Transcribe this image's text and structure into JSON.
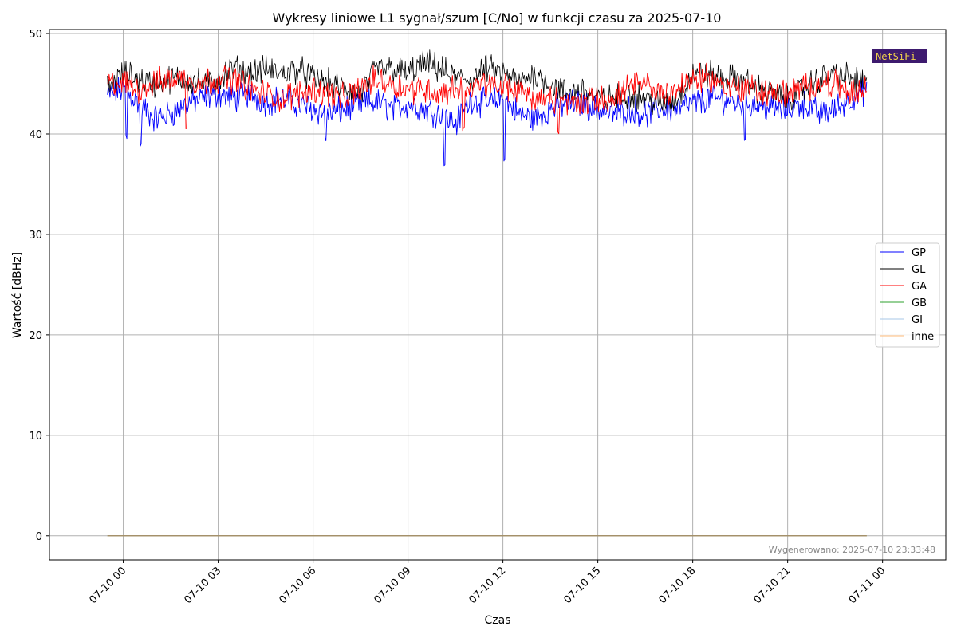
{
  "chart_data": {
    "type": "line",
    "title": "Wykresy liniowe L1 sygnał/szum [C/No] w funkcji czasu za 2025-07-10",
    "xlabel": "Czas",
    "ylabel": "Wartość [dBHz]",
    "ylim": [
      -2.4,
      50.4
    ],
    "xlim": [
      "2025-07-09 21:40",
      "2025-07-11 02:00"
    ],
    "yticks": [
      "0",
      "10",
      "20",
      "30",
      "40",
      "50"
    ],
    "xticks": [
      "07-10 00",
      "07-10 03",
      "07-10 06",
      "07-10 09",
      "07-10 12",
      "07-10 15",
      "07-10 18",
      "07-10 21",
      "07-11 00"
    ],
    "xtick_times": [
      "2025-07-10 00:00",
      "2025-07-10 03:00",
      "2025-07-10 06:00",
      "2025-07-10 09:00",
      "2025-07-10 12:00",
      "2025-07-10 15:00",
      "2025-07-10 18:00",
      "2025-07-10 21:00",
      "2025-07-11 00:00"
    ],
    "grid": true,
    "legend_position": "center-right",
    "x": [
      "2025-07-09 23:30",
      "2025-07-10 00:00",
      "2025-07-10 00:30",
      "2025-07-10 01:00",
      "2025-07-10 01:30",
      "2025-07-10 02:00",
      "2025-07-10 02:30",
      "2025-07-10 03:00",
      "2025-07-10 03:30",
      "2025-07-10 04:00",
      "2025-07-10 04:30",
      "2025-07-10 05:00",
      "2025-07-10 05:30",
      "2025-07-10 06:00",
      "2025-07-10 06:30",
      "2025-07-10 07:00",
      "2025-07-10 07:30",
      "2025-07-10 08:00",
      "2025-07-10 08:30",
      "2025-07-10 09:00",
      "2025-07-10 09:30",
      "2025-07-10 10:00",
      "2025-07-10 10:30",
      "2025-07-10 11:00",
      "2025-07-10 11:30",
      "2025-07-10 12:00",
      "2025-07-10 12:30",
      "2025-07-10 13:00",
      "2025-07-10 13:30",
      "2025-07-10 14:00",
      "2025-07-10 14:30",
      "2025-07-10 15:00",
      "2025-07-10 15:30",
      "2025-07-10 16:00",
      "2025-07-10 16:30",
      "2025-07-10 17:00",
      "2025-07-10 17:30",
      "2025-07-10 18:00",
      "2025-07-10 18:30",
      "2025-07-10 19:00",
      "2025-07-10 19:30",
      "2025-07-10 20:00",
      "2025-07-10 20:30",
      "2025-07-10 21:00",
      "2025-07-10 21:30",
      "2025-07-10 22:00",
      "2025-07-10 22:30",
      "2025-07-10 23:00",
      "2025-07-10 23:30"
    ],
    "series": [
      {
        "name": "GP",
        "color": "#0000ff",
        "width": 0.9,
        "values": [
          43.8,
          44.5,
          43.0,
          41.5,
          42.0,
          43.0,
          43.5,
          44.0,
          43.5,
          44.0,
          43.2,
          43.5,
          43.0,
          42.5,
          42.0,
          42.5,
          43.0,
          43.2,
          42.5,
          43.0,
          42.5,
          42.0,
          41.0,
          43.5,
          43.0,
          43.5,
          42.0,
          41.5,
          42.5,
          43.0,
          43.0,
          42.5,
          42.0,
          42.5,
          42.0,
          42.5,
          42.5,
          43.0,
          43.5,
          43.5,
          43.0,
          43.0,
          42.5,
          42.5,
          43.0,
          42.0,
          42.5,
          43.5,
          44.5
        ],
        "dips": [
          {
            "i": 21.3,
            "v": 36.6
          },
          {
            "i": 25.1,
            "v": 37.2
          },
          {
            "i": 2.1,
            "v": 38.7
          },
          {
            "i": 40.3,
            "v": 39.3
          },
          {
            "i": 1.2,
            "v": 39.5
          },
          {
            "i": 13.8,
            "v": 39.3
          }
        ]
      },
      {
        "name": "GL",
        "color": "#000000",
        "width": 0.8,
        "values": [
          44.5,
          46.0,
          45.5,
          45.0,
          45.5,
          45.5,
          45.0,
          45.5,
          46.5,
          46.0,
          46.5,
          46.0,
          46.5,
          45.5,
          45.0,
          44.5,
          44.0,
          46.5,
          46.5,
          46.0,
          47.0,
          46.5,
          45.5,
          45.5,
          46.5,
          46.0,
          45.0,
          46.0,
          45.0,
          44.0,
          44.5,
          43.5,
          43.5,
          44.0,
          43.5,
          43.0,
          43.5,
          46.0,
          46.0,
          45.5,
          45.5,
          44.5,
          44.0,
          43.5,
          44.5,
          45.5,
          46.0,
          45.5,
          45.0
        ],
        "dips": []
      },
      {
        "name": "GA",
        "color": "#ff0000",
        "width": 0.9,
        "values": [
          45.0,
          45.0,
          44.5,
          45.0,
          45.5,
          45.5,
          45.0,
          45.5,
          45.5,
          44.5,
          44.0,
          43.5,
          44.0,
          44.5,
          44.0,
          43.5,
          44.5,
          45.5,
          45.0,
          44.5,
          44.5,
          44.0,
          44.5,
          44.5,
          45.0,
          44.5,
          44.5,
          43.5,
          43.5,
          43.0,
          43.0,
          43.5,
          43.5,
          44.5,
          45.0,
          44.0,
          44.5,
          45.5,
          45.5,
          45.0,
          44.5,
          44.5,
          44.0,
          44.0,
          44.5,
          45.0,
          45.0,
          44.0,
          44.5
        ],
        "dips": [
          {
            "i": 5.0,
            "v": 40.4
          },
          {
            "i": 22.5,
            "v": 40.3
          },
          {
            "i": 28.5,
            "v": 40.0
          }
        ]
      },
      {
        "name": "GB",
        "color": "#2ca02c",
        "width": 0.9,
        "values": [
          0,
          0,
          0,
          0,
          0,
          0,
          0,
          0,
          0,
          0,
          0,
          0,
          0,
          0,
          0,
          0,
          0,
          0,
          0,
          0,
          0,
          0,
          0,
          0,
          0,
          0,
          0,
          0,
          0,
          0,
          0,
          0,
          0,
          0,
          0,
          0,
          0,
          0,
          0,
          0,
          0,
          0,
          0,
          0,
          0,
          0,
          0,
          0,
          0
        ],
        "dips": []
      },
      {
        "name": "GI",
        "color": "#a7c7e7",
        "width": 0.9,
        "values": [
          0,
          0,
          0,
          0,
          0,
          0,
          0,
          0,
          0,
          0,
          0,
          0,
          0,
          0,
          0,
          0,
          0,
          0,
          0,
          0,
          0,
          0,
          0,
          0,
          0,
          0,
          0,
          0,
          0,
          0,
          0,
          0,
          0,
          0,
          0,
          0,
          0,
          0,
          0,
          0,
          0,
          0,
          0,
          0,
          0,
          0,
          0,
          0,
          0
        ],
        "dips": []
      },
      {
        "name": "inne",
        "color": "#ffbb78",
        "width": 0.9,
        "values": [
          0,
          0,
          0,
          0,
          0,
          0,
          0,
          0,
          0,
          0,
          0,
          0,
          0,
          0,
          0,
          0,
          0,
          0,
          0,
          0,
          0,
          0,
          0,
          0,
          0,
          0,
          0,
          0,
          0,
          0,
          0,
          0,
          0,
          0,
          0,
          0,
          0,
          0,
          0,
          0,
          0,
          0,
          0,
          0,
          0,
          0,
          0,
          0,
          0
        ],
        "dips": []
      }
    ],
    "baseline": {
      "value": 0,
      "color": "#9e8a64"
    },
    "annotation": "Wygenerowano: 2025-07-10 23:33:48",
    "logo_text": "NetSiFi"
  },
  "colors": {
    "grid": "#b0b0b0",
    "axis": "#000000",
    "logo_bg": "#3d1a6e",
    "logo_fg": "#f2d24a"
  }
}
